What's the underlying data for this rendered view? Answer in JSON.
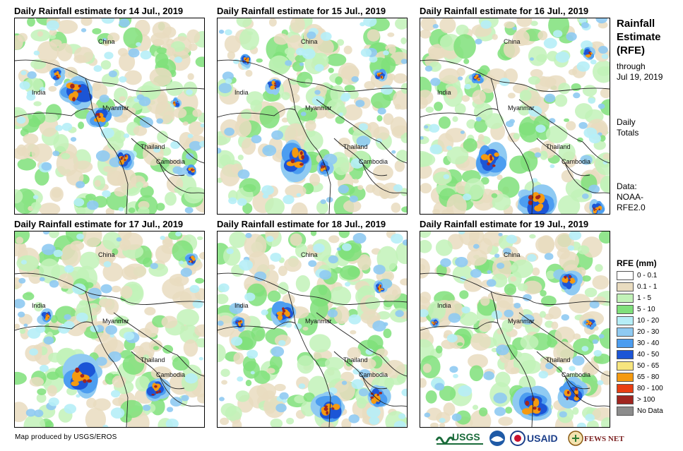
{
  "panels": [
    {
      "title": "Daily Rainfall estimate for 14 Jul., 2019",
      "storms": [
        [
          88,
          105,
          22
        ],
        [
          120,
          140,
          14
        ],
        [
          155,
          200,
          12
        ],
        [
          250,
          215,
          8
        ],
        [
          60,
          80,
          10
        ],
        [
          228,
          120,
          6
        ]
      ],
      "labels": {
        "china": "China",
        "india": "India",
        "myanmar": "Myanmar",
        "thailand": "Thailand",
        "cambodia": "Cambodia"
      }
    },
    {
      "title": "Daily Rainfall estimate for 15 Jul., 2019",
      "storms": [
        [
          112,
          200,
          22
        ],
        [
          80,
          95,
          10
        ],
        [
          230,
          80,
          8
        ],
        [
          150,
          210,
          10
        ],
        [
          40,
          60,
          8
        ]
      ],
      "labels": {
        "china": "China",
        "india": "India",
        "myanmar": "Myanmar",
        "thailand": "Thailand",
        "cambodia": "Cambodia"
      }
    },
    {
      "title": "Daily Rainfall estimate for 16 Jul., 2019",
      "storms": [
        [
          100,
          200,
          20
        ],
        [
          165,
          260,
          22
        ],
        [
          238,
          50,
          8
        ],
        [
          80,
          85,
          8
        ],
        [
          250,
          270,
          10
        ]
      ],
      "labels": {
        "china": "China",
        "india": "India",
        "myanmar": "Myanmar",
        "thailand": "Thailand",
        "cambodia": "Cambodia"
      }
    },
    {
      "title": "Daily Rainfall estimate for 17 Jul., 2019",
      "storms": [
        [
          95,
          205,
          24
        ],
        [
          200,
          225,
          14
        ],
        [
          250,
          40,
          8
        ],
        [
          45,
          120,
          8
        ]
      ],
      "labels": {
        "china": "China",
        "india": "India",
        "myanmar": "Myanmar",
        "thailand": "Thailand",
        "cambodia": "Cambodia"
      }
    },
    {
      "title": "Daily Rainfall estimate for 18 Jul., 2019",
      "storms": [
        [
          95,
          115,
          16
        ],
        [
          160,
          250,
          20
        ],
        [
          225,
          235,
          14
        ],
        [
          230,
          80,
          8
        ],
        [
          30,
          130,
          8
        ]
      ],
      "labels": {
        "china": "China",
        "india": "India",
        "myanmar": "Myanmar",
        "thailand": "Thailand",
        "cambodia": "Cambodia"
      }
    },
    {
      "title": "Daily Rainfall estimate for 19 Jul., 2019",
      "storms": [
        [
          210,
          70,
          14
        ],
        [
          160,
          245,
          22
        ],
        [
          215,
          230,
          16
        ],
        [
          20,
          130,
          6
        ],
        [
          240,
          130,
          8
        ]
      ],
      "labels": {
        "china": "China",
        "india": "India",
        "myanmar": "Myanmar",
        "thailand": "Thailand",
        "cambodia": "Cambodia"
      }
    }
  ],
  "sidebar": {
    "title_lines": [
      "Rainfall",
      "Estimate",
      "(RFE)"
    ],
    "through_lines": [
      "through",
      "Jul 19, 2019"
    ],
    "daily_lines": [
      "Daily",
      "Totals"
    ],
    "data_lines": [
      "Data:",
      "NOAA-",
      "RFE2.0"
    ]
  },
  "legend": {
    "title": "RFE (mm)",
    "items": [
      {
        "label": "0 - 0.1",
        "color": "#ffffff"
      },
      {
        "label": "0.1 - 1",
        "color": "#e9dcc0"
      },
      {
        "label": "1 - 5",
        "color": "#c2f2b8"
      },
      {
        "label": "5 - 10",
        "color": "#7fe07a"
      },
      {
        "label": "10 - 20",
        "color": "#b6eef7"
      },
      {
        "label": "20 - 30",
        "color": "#8fcaf2"
      },
      {
        "label": "30 - 40",
        "color": "#4c9df0"
      },
      {
        "label": "40 - 50",
        "color": "#1c55d6"
      },
      {
        "label": "50 - 65",
        "color": "#f7e57e"
      },
      {
        "label": "65 - 80",
        "color": "#f59a10"
      },
      {
        "label": "80 - 100",
        "color": "#e83e12"
      },
      {
        "label": "> 100",
        "color": "#a0251f"
      },
      {
        "label": "No Data",
        "color": "#8c8c8c"
      }
    ]
  },
  "footer": {
    "credit": "Map produced by USGS/EROS",
    "logos": {
      "usgs": "USGS",
      "usaid": "USAID",
      "fewsnet": "FEWS NET"
    }
  }
}
